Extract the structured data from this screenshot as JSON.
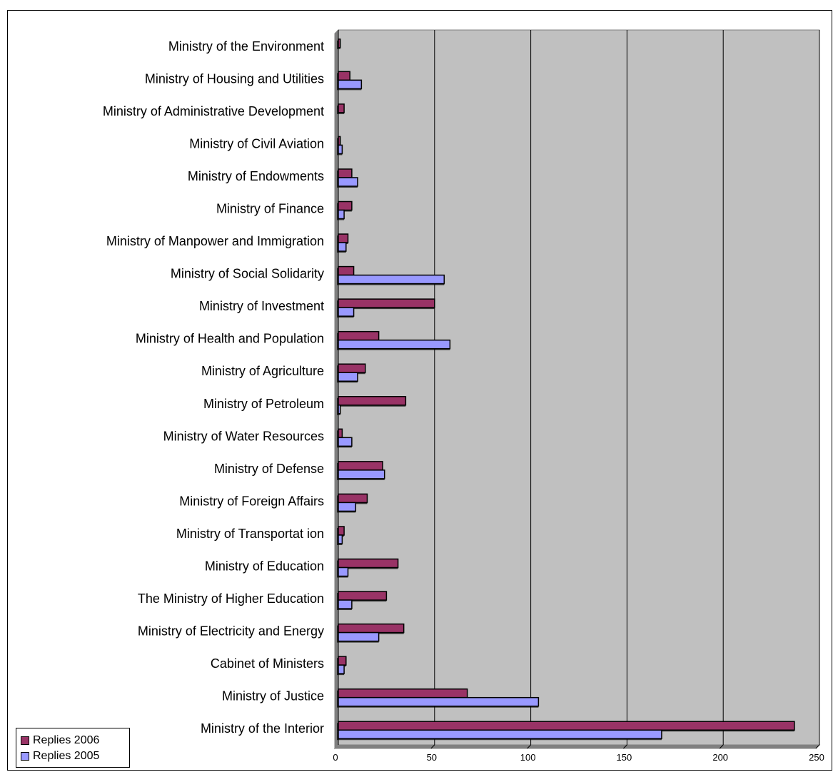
{
  "chart_data": {
    "type": "bar",
    "orientation": "horizontal",
    "categories": [
      "Ministry of the Environment",
      "Ministry of Housing and Utilities",
      "Ministry of Administrative Development",
      "Ministry of Civil Aviation",
      "Ministry of Endowments",
      "Ministry of Finance",
      "Ministry of Manpower and Immigration",
      "Ministry of Social Solidarity",
      "Ministry of Investment",
      "Ministry of Health and Population",
      "Ministry of Agriculture",
      "Ministry of Petroleum",
      "Ministry of Water Resources",
      "Ministry of Defense",
      "Ministry of Foreign Affairs",
      "Ministry of Transportat ion",
      "Ministry of Education",
      "The Ministry of Higher Education",
      "Ministry of Electricity and Energy",
      "Cabinet of Ministers",
      "Ministry of Justice",
      "Ministry of the Interior"
    ],
    "series": [
      {
        "name": "Replies 2006",
        "color": "#993366",
        "values": [
          1,
          6,
          3,
          1,
          7,
          7,
          5,
          8,
          50,
          21,
          14,
          35,
          2,
          23,
          15,
          3,
          31,
          25,
          34,
          4,
          67,
          237
        ]
      },
      {
        "name": "Replies  2005",
        "color": "#9999ff",
        "values": [
          0,
          12,
          0,
          2,
          10,
          3,
          4,
          55,
          8,
          58,
          10,
          1,
          7,
          24,
          9,
          2,
          5,
          7,
          21,
          3,
          104,
          168
        ]
      }
    ],
    "xlim": [
      0,
      250
    ],
    "xticks": [
      "0",
      "50",
      "100",
      "150",
      "200",
      "250"
    ],
    "grid": true,
    "plot_background": "#c0c0c0",
    "legend_position": "bottom-left"
  }
}
